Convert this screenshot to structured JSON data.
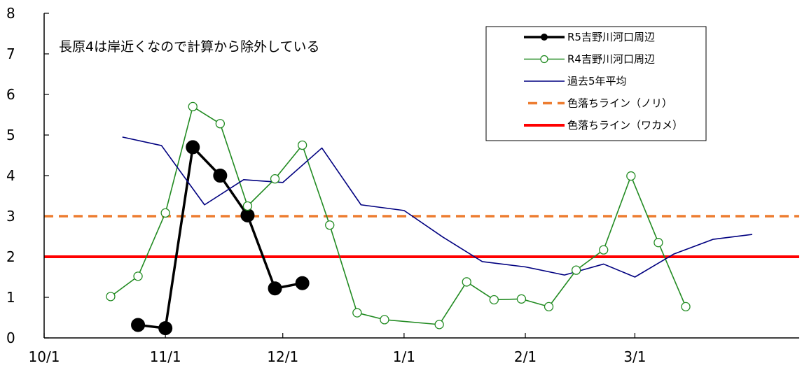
{
  "chart_data": {
    "type": "line",
    "annotation": "長原4は岸近くなので計算から除外している",
    "x_axis": {
      "ticks": [
        "10/1",
        "11/1",
        "12/1",
        "1/1",
        "2/1",
        "3/1"
      ],
      "range_days": [
        0,
        193
      ]
    },
    "y_axis": {
      "ticks": [
        "0",
        "1",
        "2",
        "3",
        "4",
        "5",
        "6",
        "7",
        "8"
      ],
      "ylim": [
        0,
        8
      ]
    },
    "grid": false,
    "legend_position": "top-right",
    "series": [
      {
        "name": "R5吉野川河口周辺",
        "color": "#000000",
        "style": "line-filled-markers",
        "points": [
          {
            "x": "10/25",
            "y": 0.32
          },
          {
            "x": "11/1",
            "y": 0.24
          },
          {
            "x": "11/8",
            "y": 4.7
          },
          {
            "x": "11/15",
            "y": 4.0
          },
          {
            "x": "11/22",
            "y": 3.02
          },
          {
            "x": "11/29",
            "y": 1.22
          },
          {
            "x": "12/6",
            "y": 1.35
          }
        ]
      },
      {
        "name": "R4吉野川河口周辺",
        "color": "#228B22",
        "style": "line-open-markers",
        "points": [
          {
            "x": "10/18",
            "y": 1.02
          },
          {
            "x": "10/25",
            "y": 1.52
          },
          {
            "x": "11/1",
            "y": 3.08
          },
          {
            "x": "11/8",
            "y": 5.7
          },
          {
            "x": "11/15",
            "y": 5.28
          },
          {
            "x": "11/22",
            "y": 3.25
          },
          {
            "x": "11/29",
            "y": 3.92
          },
          {
            "x": "12/6",
            "y": 4.75
          },
          {
            "x": "12/13",
            "y": 2.78
          },
          {
            "x": "12/20",
            "y": 0.62
          },
          {
            "x": "12/27",
            "y": 0.45
          },
          {
            "x": "1/10",
            "y": 0.33
          },
          {
            "x": "1/17",
            "y": 1.38
          },
          {
            "x": "1/24",
            "y": 0.94
          },
          {
            "x": "1/31",
            "y": 0.96
          },
          {
            "x": "2/7",
            "y": 0.77
          },
          {
            "x": "2/14",
            "y": 1.67
          },
          {
            "x": "2/21",
            "y": 2.17
          },
          {
            "x": "2/28",
            "y": 3.99
          },
          {
            "x": "3/7",
            "y": 2.35
          },
          {
            "x": "3/14",
            "y": 0.77
          }
        ]
      },
      {
        "name": "過去5年平均",
        "color": "#000080",
        "style": "line",
        "points": [
          {
            "x": "10/21",
            "y": 4.95
          },
          {
            "x": "10/31",
            "y": 4.74
          },
          {
            "x": "11/11",
            "y": 3.28
          },
          {
            "x": "11/21",
            "y": 3.9
          },
          {
            "x": "12/1",
            "y": 3.83
          },
          {
            "x": "12/11",
            "y": 4.68
          },
          {
            "x": "12/21",
            "y": 3.28
          },
          {
            "x": "1/1",
            "y": 3.14
          },
          {
            "x": "1/11",
            "y": 2.48
          },
          {
            "x": "1/21",
            "y": 1.88
          },
          {
            "x": "2/1",
            "y": 1.75
          },
          {
            "x": "2/11",
            "y": 1.55
          },
          {
            "x": "2/21",
            "y": 1.82
          },
          {
            "x": "3/1",
            "y": 1.5
          },
          {
            "x": "3/11",
            "y": 2.07
          },
          {
            "x": "3/21",
            "y": 2.43
          },
          {
            "x": "3/31",
            "y": 2.55
          }
        ]
      },
      {
        "name": "色落ちライン（ノリ）",
        "color": "#ED7D31",
        "style": "dashed-hline",
        "y": 3
      },
      {
        "name": "色落ちライン（ワカメ）",
        "color": "#FF0000",
        "style": "solid-hline",
        "y": 2
      }
    ]
  }
}
